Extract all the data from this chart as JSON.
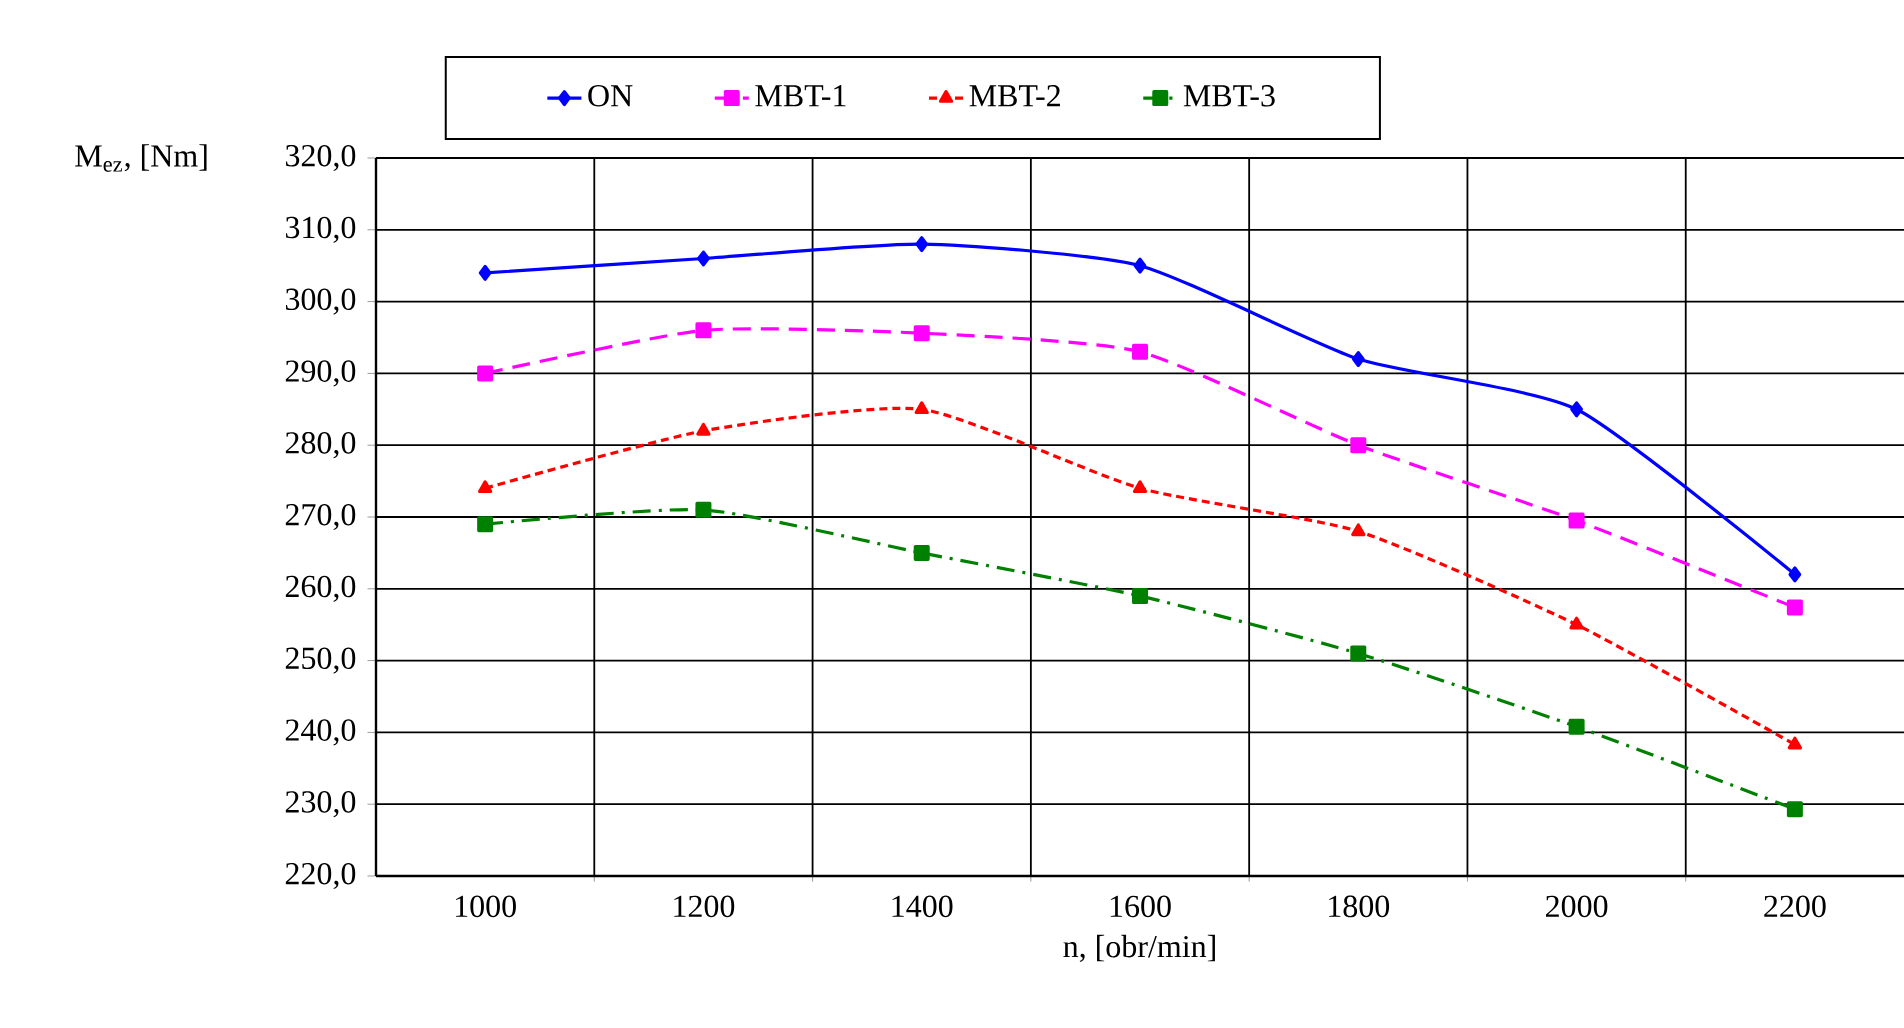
{
  "chart_data": {
    "type": "line",
    "xlabel": "n, [obr/min]",
    "ylabel": "M$_{ez}$, [Nm]",
    "categories": [
      "1000",
      "1200",
      "1400",
      "1600",
      "1800",
      "2000",
      "2200"
    ],
    "series": [
      {
        "name": "ON",
        "color": "#0000ff",
        "marker": "diamond",
        "line_style": "solid",
        "values": [
          304,
          306,
          308,
          305,
          292,
          285,
          262
        ]
      },
      {
        "name": "MBT-1",
        "color": "#ff00ff",
        "marker": "square",
        "line_style": "dashed",
        "values": [
          290,
          296,
          295.6,
          293,
          280,
          269.5,
          257.4
        ]
      },
      {
        "name": "MBT-2",
        "color": "#ff0000",
        "marker": "triangle",
        "line_style": "dotted",
        "values": [
          274,
          282,
          285,
          274,
          268,
          255,
          238.3
        ]
      },
      {
        "name": "MBT-3",
        "color": "#008000",
        "marker": "square",
        "line_style": "dashdot",
        "values": [
          269,
          271,
          265,
          259,
          251,
          240.8,
          229.3
        ]
      }
    ],
    "ylim": [
      220,
      320
    ],
    "yticks": [
      {
        "value": 220,
        "label": "220,0"
      },
      {
        "value": 230,
        "label": "230,0"
      },
      {
        "value": 240,
        "label": "240,0"
      },
      {
        "value": 250,
        "label": "250,0"
      },
      {
        "value": 260,
        "label": "260,0"
      },
      {
        "value": 270,
        "label": "270,0"
      },
      {
        "value": 280,
        "label": "280,0"
      },
      {
        "value": 290,
        "label": "290,0"
      },
      {
        "value": 300,
        "label": "300,0"
      },
      {
        "value": 310,
        "label": "310,0"
      },
      {
        "value": 320,
        "label": "320,0"
      }
    ],
    "grid": true,
    "legend": "top"
  }
}
